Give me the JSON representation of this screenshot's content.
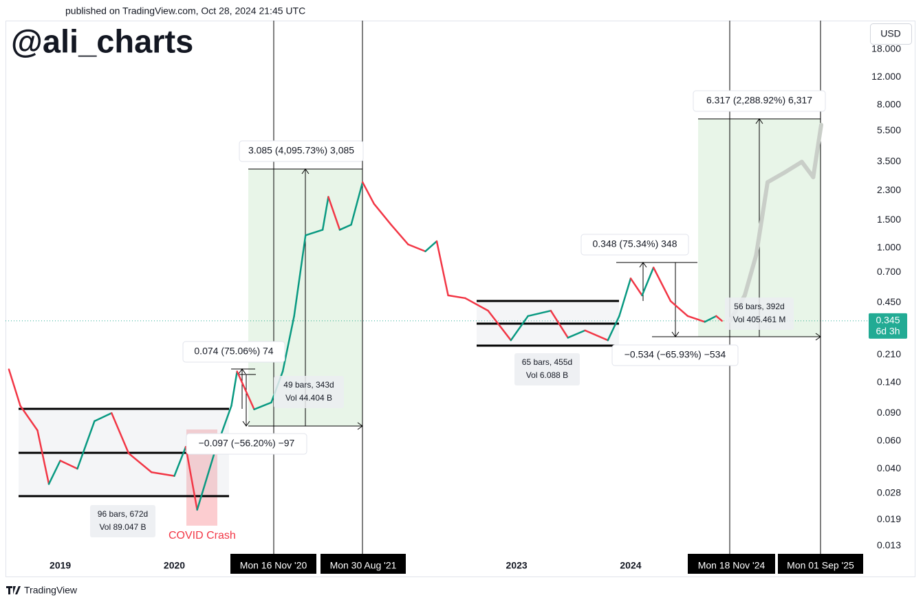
{
  "header": "published on TradingView.com, Oct 28, 2024 21:45 UTC",
  "watermark": "@ali_charts",
  "currency": "USD",
  "footer": "TradingView",
  "chart_data": {
    "type": "line",
    "log_scale": true,
    "xlim": [
      2018.52,
      2026.08
    ],
    "xticks": [
      2019,
      2020,
      2023,
      2024
    ],
    "ylim": [
      0.0084,
      27.4
    ],
    "yticks": [
      {
        "value": 18,
        "label": "18.000"
      },
      {
        "value": 12,
        "label": "12.000"
      },
      {
        "value": 8,
        "label": "8.000"
      },
      {
        "value": 5.5,
        "label": "5.500"
      },
      {
        "value": 3.5,
        "label": "3.500"
      },
      {
        "value": 2.3,
        "label": "2.300"
      },
      {
        "value": 1.5,
        "label": "1.500"
      },
      {
        "value": 1,
        "label": "1.000"
      },
      {
        "value": 0.7,
        "label": "0.700"
      },
      {
        "value": 0.45,
        "label": "0.450"
      },
      {
        "value": 0.21,
        "label": "0.210"
      },
      {
        "value": 0.14,
        "label": "0.140"
      },
      {
        "value": 0.09,
        "label": "0.090"
      },
      {
        "value": 0.06,
        "label": "0.060"
      },
      {
        "value": 0.04,
        "label": "0.040"
      },
      0.028,
      0.019,
      0.013
    ],
    "series": [
      {
        "x": [
          2018.55,
          2018.65,
          2018.8,
          2018.9,
          2019.0,
          2019.15,
          2019.3,
          2019.45,
          2019.6,
          2019.8,
          2020.0,
          2020.1,
          2020.2,
          2020.35,
          2020.5,
          2020.55,
          2020.7,
          2020.85,
          2020.95,
          2021.05,
          2021.15,
          2021.3,
          2021.35,
          2021.45,
          2021.55,
          2021.65,
          2021.75,
          2021.9,
          2022.05,
          2022.2,
          2022.3,
          2022.4,
          2022.55,
          2022.75,
          2022.95,
          2023.1,
          2023.3,
          2023.45,
          2023.6,
          2023.8,
          2023.9,
          2024.0,
          2024.1,
          2024.2,
          2024.35,
          2024.5,
          2024.65,
          2024.75,
          2024.8
        ],
        "values": [
          0.17,
          0.1,
          0.07,
          0.032,
          0.045,
          0.04,
          0.08,
          0.09,
          0.05,
          0.038,
          0.036,
          0.055,
          0.022,
          0.05,
          0.1,
          0.165,
          0.095,
          0.105,
          0.165,
          0.37,
          1.2,
          1.3,
          2.1,
          1.3,
          1.4,
          2.6,
          1.9,
          1.4,
          1.05,
          0.95,
          1.1,
          0.5,
          0.48,
          0.4,
          0.26,
          0.37,
          0.4,
          0.27,
          0.3,
          0.26,
          0.37,
          0.64,
          0.5,
          0.75,
          0.46,
          0.37,
          0.34,
          0.37,
          0.345
        ],
        "up_color": "#089981",
        "down_color": "#f23645"
      },
      {
        "x": [
          2024.87,
          2025.0,
          2025.1,
          2025.2,
          2025.35,
          2025.5,
          2025.6,
          2025.67
        ],
        "values": [
          0.345,
          0.5,
          0.9,
          2.6,
          3.0,
          3.5,
          2.8,
          6.0
        ],
        "color": "#c9cec8"
      }
    ],
    "last_price": 0.345,
    "countdown": "6d 3h",
    "last_price_color": "#22ab94",
    "date_markers": [
      "Mon 16 Nov '20",
      "Mon 30 Aug '21",
      "Mon 18 Nov '24",
      "Mon 01 Sep '25"
    ],
    "measures": [
      "0.074 (75.06%) 74",
      "−0.097 (−56.20%) −97",
      "3.085 (4,095.73%) 3,085",
      "0.348 (75.34%) 348",
      "−0.534 (−65.93%) −534",
      "6.317 (2,288.92%) 6,317"
    ],
    "ranges": [
      [
        "96 bars, 672d",
        "Vol 89.047 B"
      ],
      [
        "49 bars, 343d",
        "Vol 44.404 B"
      ],
      [
        "65 bars, 455d",
        "Vol 6.088 B"
      ],
      [
        "56 bars, 392d",
        "Vol 405.461 M"
      ]
    ],
    "annotation": "COVID Crash"
  }
}
